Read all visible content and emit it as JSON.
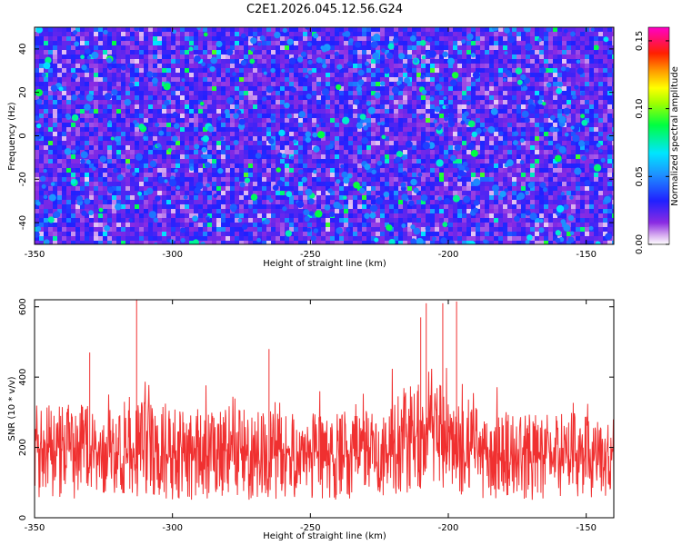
{
  "title": "C2E1.2026.045.12.56.G24",
  "chart_data": [
    {
      "type": "heatmap",
      "xlabel": "Height of straight line (km)",
      "ylabel": "Frequency (Hz)",
      "xlim": [
        -350,
        -140
      ],
      "ylim": [
        -50,
        50
      ],
      "xticks": [
        -350,
        -300,
        -250,
        -200,
        -150
      ],
      "yticks": [
        -40,
        -20,
        0,
        20,
        40
      ],
      "colorbar": {
        "label": "Normalized spectral amplitude",
        "range": [
          0.0,
          0.16
        ],
        "ticks": [
          "0.00",
          "0.05",
          "0.10",
          "0.15"
        ],
        "colormap": "rainbow (purple → blue → cyan → green → yellow → red → magenta)"
      },
      "description_values": {
        "typical_amplitude": 0.03,
        "peak_amplitude": 0.08
      }
    },
    {
      "type": "line",
      "xlabel": "Height of straight line (km)",
      "ylabel": "SNR (10 * v/v)",
      "xlim": [
        -350,
        -140
      ],
      "ylim": [
        0,
        620
      ],
      "xticks": [
        -350,
        -300,
        -250,
        -200,
        -150
      ],
      "yticks": [
        0,
        200,
        400,
        600
      ],
      "series_color": "#f03030",
      "envelope": {
        "x": [
          -350,
          -340,
          -330,
          -320,
          -310,
          -300,
          -290,
          -280,
          -270,
          -260,
          -250,
          -240,
          -230,
          -220,
          -215,
          -210,
          -205,
          -200,
          -195,
          -190,
          -180,
          -170,
          -160,
          -150,
          -140
        ],
        "mean": [
          160,
          150,
          160,
          155,
          160,
          150,
          150,
          155,
          150,
          155,
          150,
          150,
          155,
          165,
          180,
          195,
          200,
          190,
          170,
          160,
          150,
          150,
          150,
          150,
          150
        ],
        "upper": [
          330,
          320,
          330,
          320,
          340,
          310,
          310,
          320,
          300,
          310,
          300,
          300,
          310,
          340,
          380,
          420,
          430,
          400,
          340,
          320,
          300,
          300,
          300,
          300,
          300
        ],
        "lower": [
          60,
          50,
          55,
          55,
          60,
          50,
          50,
          55,
          50,
          55,
          50,
          50,
          55,
          60,
          70,
          80,
          90,
          80,
          60,
          55,
          50,
          50,
          50,
          50,
          50
        ]
      },
      "spikes": [
        {
          "x": -313,
          "y": 620
        },
        {
          "x": -208,
          "y": 610
        },
        {
          "x": -202,
          "y": 610
        },
        {
          "x": -197,
          "y": 615
        },
        {
          "x": -210,
          "y": 570
        },
        {
          "x": -265,
          "y": 480
        },
        {
          "x": -330,
          "y": 470
        }
      ]
    }
  ]
}
